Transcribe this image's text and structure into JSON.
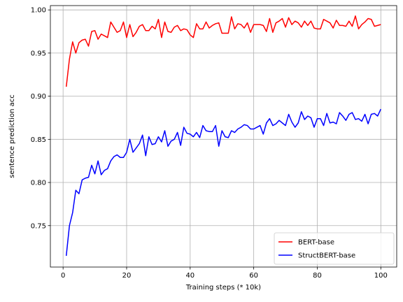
{
  "chart_data": {
    "type": "line",
    "title": "",
    "xlabel": "Training steps (* 10k)",
    "ylabel": "sentence prediction acc",
    "xlim": [
      -4,
      105
    ],
    "ylim": [
      0.702,
      1.005
    ],
    "xticks": [
      0,
      20,
      40,
      60,
      80,
      100
    ],
    "yticks": [
      0.75,
      0.8,
      0.85,
      0.9,
      0.95,
      1.0
    ],
    "xtick_labels": [
      "0",
      "20",
      "40",
      "60",
      "80",
      "100"
    ],
    "ytick_labels": [
      "0.75",
      "0.80",
      "0.85",
      "0.90",
      "0.95",
      "1.00"
    ],
    "grid": true,
    "legend_position": "bottom-right",
    "x": [
      1,
      2,
      3,
      4,
      5,
      6,
      7,
      8,
      9,
      10,
      11,
      12,
      13,
      14,
      15,
      16,
      17,
      18,
      19,
      20,
      21,
      22,
      23,
      24,
      25,
      26,
      27,
      28,
      29,
      30,
      31,
      32,
      33,
      34,
      35,
      36,
      37,
      38,
      39,
      40,
      41,
      42,
      43,
      44,
      45,
      46,
      47,
      48,
      49,
      50,
      51,
      52,
      53,
      54,
      55,
      56,
      57,
      58,
      59,
      60,
      61,
      62,
      63,
      64,
      65,
      66,
      67,
      68,
      69,
      70,
      71,
      72,
      73,
      74,
      75,
      76,
      77,
      78,
      79,
      80,
      81,
      82,
      83,
      84,
      85,
      86,
      87,
      88,
      89,
      90,
      91,
      92,
      93,
      94,
      95,
      96,
      97,
      98,
      99,
      100
    ],
    "series": [
      {
        "name": "BERT-base",
        "color": "#ff0000",
        "values": [
          0.911,
          0.943,
          0.963,
          0.95,
          0.962,
          0.965,
          0.966,
          0.958,
          0.975,
          0.976,
          0.966,
          0.972,
          0.97,
          0.968,
          0.986,
          0.98,
          0.974,
          0.976,
          0.986,
          0.968,
          0.983,
          0.969,
          0.974,
          0.981,
          0.983,
          0.976,
          0.976,
          0.981,
          0.978,
          0.989,
          0.968,
          0.986,
          0.975,
          0.974,
          0.98,
          0.982,
          0.976,
          0.978,
          0.977,
          0.971,
          0.968,
          0.984,
          0.978,
          0.978,
          0.986,
          0.979,
          0.982,
          0.984,
          0.985,
          0.973,
          0.973,
          0.973,
          0.992,
          0.978,
          0.984,
          0.983,
          0.979,
          0.985,
          0.974,
          0.983,
          0.983,
          0.983,
          0.982,
          0.975,
          0.99,
          0.974,
          0.985,
          0.987,
          0.99,
          0.98,
          0.991,
          0.983,
          0.987,
          0.985,
          0.98,
          0.987,
          0.982,
          0.987,
          0.979,
          0.978,
          0.978,
          0.989,
          0.987,
          0.985,
          0.979,
          0.988,
          0.982,
          0.982,
          0.981,
          0.987,
          0.981,
          0.993,
          0.978,
          0.983,
          0.986,
          0.99,
          0.989,
          0.981,
          0.982,
          0.983
        ]
      },
      {
        "name": "StructBERT-base",
        "color": "#0000ff",
        "values": [
          0.715,
          0.75,
          0.765,
          0.791,
          0.787,
          0.803,
          0.805,
          0.806,
          0.82,
          0.81,
          0.825,
          0.809,
          0.814,
          0.816,
          0.825,
          0.83,
          0.832,
          0.829,
          0.829,
          0.835,
          0.85,
          0.835,
          0.84,
          0.845,
          0.855,
          0.831,
          0.853,
          0.844,
          0.845,
          0.853,
          0.847,
          0.86,
          0.842,
          0.848,
          0.85,
          0.858,
          0.843,
          0.864,
          0.857,
          0.856,
          0.853,
          0.858,
          0.852,
          0.866,
          0.86,
          0.859,
          0.859,
          0.866,
          0.842,
          0.86,
          0.853,
          0.852,
          0.86,
          0.858,
          0.862,
          0.864,
          0.867,
          0.866,
          0.862,
          0.862,
          0.864,
          0.866,
          0.856,
          0.869,
          0.874,
          0.866,
          0.868,
          0.872,
          0.869,
          0.866,
          0.879,
          0.87,
          0.864,
          0.869,
          0.882,
          0.873,
          0.877,
          0.875,
          0.864,
          0.874,
          0.874,
          0.866,
          0.88,
          0.869,
          0.87,
          0.868,
          0.881,
          0.877,
          0.872,
          0.879,
          0.881,
          0.873,
          0.874,
          0.871,
          0.879,
          0.868,
          0.879,
          0.88,
          0.877,
          0.885
        ]
      }
    ]
  }
}
